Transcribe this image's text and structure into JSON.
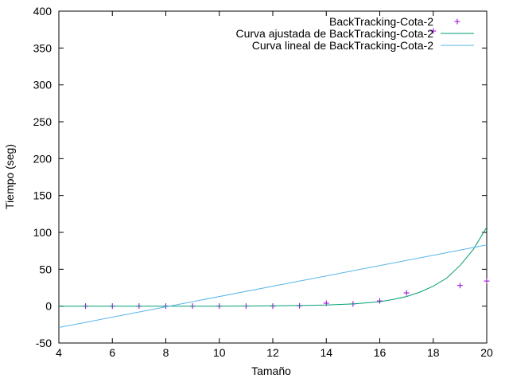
{
  "chart_data": {
    "type": "line",
    "xlabel": "Tamaño",
    "ylabel": "Tiempo (seg)",
    "xlim": [
      4,
      20
    ],
    "ylim": [
      -50,
      400
    ],
    "x_ticks": [
      4,
      6,
      8,
      10,
      12,
      14,
      16,
      18,
      20
    ],
    "y_ticks": [
      -50,
      0,
      50,
      100,
      150,
      200,
      250,
      300,
      350,
      400
    ],
    "grid": false,
    "legend_position": "top-right",
    "series": [
      {
        "name": "BackTracking-Cota-2",
        "kind": "points",
        "marker": "+",
        "color": "#9400d3",
        "x": [
          5,
          6,
          7,
          8,
          9,
          10,
          11,
          12,
          13,
          14,
          15,
          16,
          17,
          18,
          19,
          20
        ],
        "y": [
          0,
          0,
          0,
          0,
          0,
          0,
          0,
          0,
          0.5,
          4,
          3,
          7,
          18,
          373,
          28,
          34
        ]
      },
      {
        "name": "Curva ajustada de BackTracking-Cota-2",
        "kind": "line",
        "color": "#009e73",
        "x": [
          4,
          8,
          10,
          12,
          13,
          14,
          15,
          16,
          16.5,
          17,
          17.5,
          18,
          18.5,
          19,
          19.5,
          20
        ],
        "y": [
          0,
          0,
          0,
          0.4,
          0.8,
          1.5,
          3,
          6,
          9,
          13,
          19,
          27,
          38,
          55,
          77,
          107
        ]
      },
      {
        "name": "Curva lineal de BackTracking-Cota-2",
        "kind": "line",
        "color": "#56b4e9",
        "x": [
          4,
          20
        ],
        "y": [
          -29,
          83
        ]
      }
    ]
  }
}
